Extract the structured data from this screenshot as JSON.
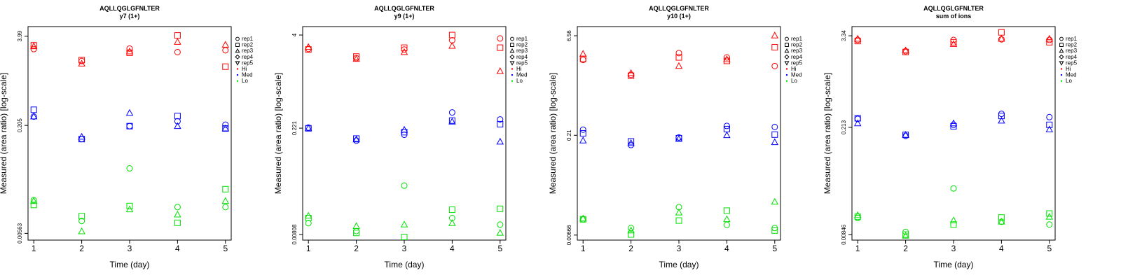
{
  "chart_data": [
    {
      "type": "scatter",
      "title": "AQLLQGLGFNLTER",
      "subtitle": "y7 (1+)",
      "xlabel": "Time (day)",
      "ylabel": "Measured (area ratio) [log-scale]",
      "x_ticks": [
        "1",
        "2",
        "3",
        "4",
        "5"
      ],
      "y_tick_labels": [
        "3.99",
        "0.205",
        "0.00563"
      ],
      "y_tick_values": [
        3.99,
        0.205,
        0.00563
      ],
      "ylim": [
        0.0045,
        5.5
      ],
      "log_scale_y": true,
      "grid": false,
      "legend_position": "right",
      "legend": [
        {
          "label": "rep1",
          "marker": "circle"
        },
        {
          "label": "rep2",
          "marker": "square"
        },
        {
          "label": "rep3",
          "marker": "triangle-up"
        },
        {
          "label": "rep4",
          "marker": "diamond"
        },
        {
          "label": "rep5",
          "marker": "triangle-down"
        },
        {
          "label": "Hi",
          "marker": "dot",
          "color": "#ff0000"
        },
        {
          "label": "Med",
          "marker": "dot",
          "color": "#0000ff"
        },
        {
          "label": "Lo",
          "marker": "dot",
          "color": "#00e000"
        }
      ],
      "series": [
        {
          "level": "Hi",
          "rep": "rep1",
          "values": [
            2.6,
            1.75,
            2.65,
            2.35,
            2.5
          ]
        },
        {
          "level": "Hi",
          "rep": "rep2",
          "values": [
            2.95,
            1.8,
            2.3,
            4.1,
            1.45
          ]
        },
        {
          "level": "Hi",
          "rep": "rep3",
          "values": [
            2.85,
            1.6,
            2.4,
            3.3,
            3.0
          ]
        },
        {
          "level": "Med",
          "rep": "rep1",
          "values": [
            0.275,
            0.13,
            0.2,
            0.235,
            0.21
          ]
        },
        {
          "level": "Med",
          "rep": "rep2",
          "values": [
            0.345,
            0.13,
            0.2,
            0.28,
            0.185
          ]
        },
        {
          "level": "Med",
          "rep": "rep3",
          "values": [
            0.275,
            0.14,
            0.31,
            0.2,
            0.185
          ]
        },
        {
          "level": "Lo",
          "rep": "rep1",
          "values": [
            0.017,
            0.0085,
            0.049,
            0.0135,
            0.0135
          ]
        },
        {
          "level": "Lo",
          "rep": "rep2",
          "values": [
            0.0145,
            0.01,
            0.014,
            0.008,
            0.0245
          ]
        },
        {
          "level": "Lo",
          "rep": "rep3",
          "values": [
            0.0165,
            0.006,
            0.0125,
            0.0105,
            0.0165
          ]
        }
      ]
    },
    {
      "type": "scatter",
      "title": "AQLLQGLGFNLTER",
      "subtitle": "y9 (1+)",
      "xlabel": "Time (day)",
      "ylabel": "Measured (area ratio) [log-scale]",
      "x_ticks": [
        "1",
        "2",
        "3",
        "4",
        "5"
      ],
      "y_tick_labels": [
        "4",
        "0.221",
        "0.00808"
      ],
      "y_tick_values": [
        4,
        0.221,
        0.00808
      ],
      "ylim": [
        0.0068,
        5.2
      ],
      "log_scale_y": true,
      "grid": false,
      "legend_position": "right",
      "legend": [
        {
          "label": "rep1",
          "marker": "circle"
        },
        {
          "label": "rep2",
          "marker": "square"
        },
        {
          "label": "rep3",
          "marker": "triangle-up"
        },
        {
          "label": "rep4",
          "marker": "diamond"
        },
        {
          "label": "rep5",
          "marker": "triangle-down"
        },
        {
          "label": "Hi",
          "marker": "dot",
          "color": "#ff0000"
        },
        {
          "label": "Med",
          "marker": "dot",
          "color": "#0000ff"
        },
        {
          "label": "Lo",
          "marker": "dot",
          "color": "#00e000"
        }
      ],
      "series": [
        {
          "level": "Hi",
          "rep": "rep1",
          "values": [
            2.6,
            1.95,
            2.55,
            3.4,
            3.6
          ]
        },
        {
          "level": "Hi",
          "rep": "rep2",
          "values": [
            2.55,
            2.05,
            2.7,
            4.0,
            2.7
          ]
        },
        {
          "level": "Hi",
          "rep": "rep3",
          "values": [
            2.75,
            1.9,
            2.35,
            2.85,
            1.3
          ]
        },
        {
          "level": "Med",
          "rep": "rep1",
          "values": [
            0.225,
            0.15,
            0.18,
            0.36,
            0.29
          ]
        },
        {
          "level": "Med",
          "rep": "rep2",
          "values": [
            0.22,
            0.16,
            0.195,
            0.28,
            0.25
          ]
        },
        {
          "level": "Med",
          "rep": "rep3",
          "values": [
            0.22,
            0.155,
            0.21,
            0.27,
            0.145
          ]
        },
        {
          "level": "Lo",
          "rep": "rep1",
          "values": [
            0.0115,
            0.009,
            0.037,
            0.0135,
            0.011
          ]
        },
        {
          "level": "Lo",
          "rep": "rep2",
          "values": [
            0.0135,
            0.0085,
            0.0075,
            0.0175,
            0.018
          ]
        },
        {
          "level": "Lo",
          "rep": "rep3",
          "values": [
            0.0145,
            0.0105,
            0.011,
            0.0115,
            0.0085
          ]
        }
      ]
    },
    {
      "type": "scatter",
      "title": "AQLLQGLGFNLTER",
      "subtitle": "y10 (1+)",
      "xlabel": "Time (day)",
      "ylabel": "Measured (area ratio) [log-scale]",
      "x_ticks": [
        "1",
        "2",
        "3",
        "4",
        "5"
      ],
      "y_tick_labels": [
        "6.56",
        "0.21",
        "0.00666"
      ],
      "y_tick_values": [
        6.56,
        0.21,
        0.00666
      ],
      "ylim": [
        0.0056,
        9.0
      ],
      "log_scale_y": true,
      "grid": false,
      "legend_position": "right",
      "legend": [
        {
          "label": "rep1",
          "marker": "circle"
        },
        {
          "label": "rep2",
          "marker": "square"
        },
        {
          "label": "rep3",
          "marker": "triangle-up"
        },
        {
          "label": "rep4",
          "marker": "diamond"
        },
        {
          "label": "rep5",
          "marker": "triangle-down"
        },
        {
          "label": "Hi",
          "marker": "dot",
          "color": "#ff0000"
        },
        {
          "label": "Med",
          "marker": "dot",
          "color": "#0000ff"
        },
        {
          "label": "Lo",
          "marker": "dot",
          "color": "#00e000"
        }
      ],
      "series": [
        {
          "level": "Hi",
          "rep": "rep1",
          "values": [
            2.85,
            1.7,
            3.6,
            3.1,
            2.3
          ]
        },
        {
          "level": "Hi",
          "rep": "rep2",
          "values": [
            2.95,
            1.65,
            3.1,
            2.75,
            4.4
          ]
        },
        {
          "level": "Hi",
          "rep": "rep3",
          "values": [
            3.5,
            1.8,
            2.3,
            2.9,
            6.6
          ]
        },
        {
          "level": "Med",
          "rep": "rep1",
          "values": [
            0.255,
            0.15,
            0.195,
            0.29,
            0.28
          ]
        },
        {
          "level": "Med",
          "rep": "rep2",
          "values": [
            0.225,
            0.17,
            0.19,
            0.26,
            0.215
          ]
        },
        {
          "level": "Med",
          "rep": "rep3",
          "values": [
            0.175,
            0.16,
            0.185,
            0.21,
            0.165
          ]
        },
        {
          "level": "Lo",
          "rep": "rep1",
          "values": [
            0.0115,
            0.0085,
            0.0175,
            0.0095,
            0.0085
          ]
        },
        {
          "level": "Lo",
          "rep": "rep2",
          "values": [
            0.0115,
            0.0068,
            0.011,
            0.0155,
            0.0078
          ]
        },
        {
          "level": "Lo",
          "rep": "rep3",
          "values": [
            0.0118,
            0.0078,
            0.0145,
            0.0115,
            0.021
          ]
        }
      ]
    },
    {
      "type": "scatter",
      "title": "AQLLQGLGFNLTER",
      "subtitle": "sum of ions",
      "xlabel": "Time (day)",
      "ylabel": "Measured (area ratio) [log-scale]",
      "x_ticks": [
        "1",
        "2",
        "3",
        "4",
        "5"
      ],
      "y_tick_labels": [
        "3.34",
        "0.213",
        "0.00846"
      ],
      "y_tick_values": [
        3.34,
        0.213,
        0.00846
      ],
      "ylim": [
        0.0072,
        4.4
      ],
      "log_scale_y": true,
      "grid": false,
      "legend_position": "right",
      "legend": [
        {
          "label": "rep1",
          "marker": "circle"
        },
        {
          "label": "rep2",
          "marker": "square"
        },
        {
          "label": "rep3",
          "marker": "triangle-up"
        },
        {
          "label": "rep4",
          "marker": "diamond"
        },
        {
          "label": "rep5",
          "marker": "triangle-down"
        },
        {
          "label": "Hi",
          "marker": "dot",
          "color": "#ff0000"
        },
        {
          "label": "Med",
          "marker": "dot",
          "color": "#0000ff"
        },
        {
          "label": "Lo",
          "marker": "dot",
          "color": "#00e000"
        }
      ],
      "series": [
        {
          "level": "Hi",
          "rep": "rep1",
          "values": [
            2.95,
            2.1,
            2.95,
            3.0,
            2.95
          ]
        },
        {
          "level": "Hi",
          "rep": "rep2",
          "values": [
            2.85,
            2.05,
            2.75,
            3.7,
            2.75
          ]
        },
        {
          "level": "Hi",
          "rep": "rep3",
          "values": [
            3.05,
            2.15,
            2.6,
            3.05,
            3.05
          ]
        },
        {
          "level": "Med",
          "rep": "rep1",
          "values": [
            0.275,
            0.165,
            0.23,
            0.32,
            0.29
          ]
        },
        {
          "level": "Med",
          "rep": "rep2",
          "values": [
            0.28,
            0.17,
            0.22,
            0.3,
            0.23
          ]
        },
        {
          "level": "Med",
          "rep": "rep3",
          "values": [
            0.24,
            0.17,
            0.24,
            0.26,
            0.2
          ]
        },
        {
          "level": "Lo",
          "rep": "rep1",
          "values": [
            0.014,
            0.0092,
            0.034,
            0.0125,
            0.0115
          ]
        },
        {
          "level": "Lo",
          "rep": "rep2",
          "values": [
            0.0145,
            0.0085,
            0.0115,
            0.0142,
            0.016
          ]
        },
        {
          "level": "Lo",
          "rep": "rep3",
          "values": [
            0.0152,
            0.0082,
            0.013,
            0.0125,
            0.0145
          ]
        }
      ]
    }
  ],
  "colors": {
    "Hi": "#ff0000",
    "Med": "#0000ff",
    "Lo": "#00e000"
  }
}
